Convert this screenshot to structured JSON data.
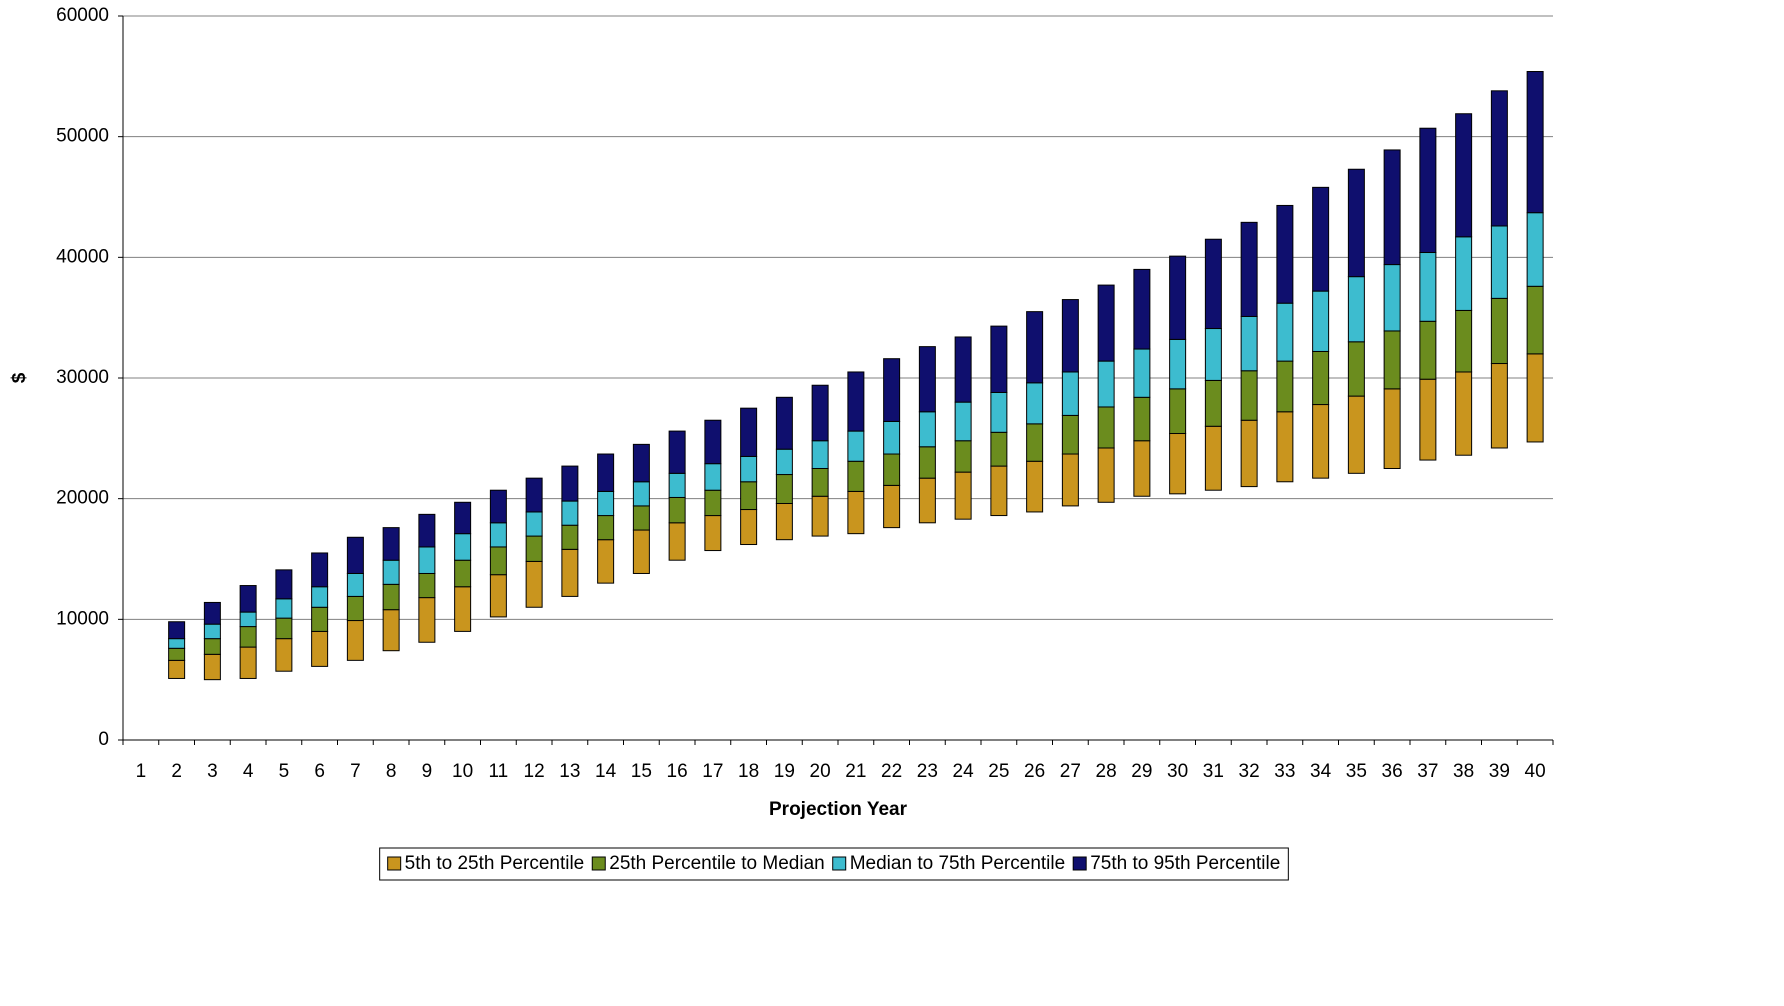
{
  "chart_data": {
    "type": "floating-stacked-bar",
    "y_label": "$",
    "x_label": "Projection Year",
    "categories": [
      "1",
      "2",
      "3",
      "4",
      "5",
      "6",
      "7",
      "8",
      "9",
      "10",
      "11",
      "12",
      "13",
      "14",
      "15",
      "16",
      "17",
      "18",
      "19",
      "20",
      "21",
      "22",
      "23",
      "24",
      "25",
      "26",
      "27",
      "28",
      "29",
      "30",
      "31",
      "32",
      "33",
      "34",
      "35",
      "36",
      "37",
      "38",
      "39",
      "40"
    ],
    "bases": [
      null,
      5100,
      5000,
      5100,
      5700,
      6100,
      6600,
      7400,
      8100,
      9000,
      10200,
      11000,
      11900,
      13000,
      13800,
      14900,
      15700,
      16200,
      16600,
      16900,
      17100,
      17600,
      18000,
      18300,
      18600,
      18900,
      19400,
      19700,
      20200,
      20400,
      20700,
      21000,
      21400,
      21700,
      22100,
      22500,
      23200,
      23600,
      24200,
      24700
    ],
    "series": [
      {
        "name": "5th to 25th Percentile",
        "color": "#c9951e",
        "values": [
          null,
          1500,
          2100,
          2600,
          2700,
          2900,
          3300,
          3400,
          3700,
          3700,
          3500,
          3800,
          3900,
          3600,
          3600,
          3100,
          2900,
          2900,
          3000,
          3300,
          3500,
          3500,
          3700,
          3900,
          4100,
          4200,
          4300,
          4500,
          4600,
          5000,
          5300,
          5500,
          5800,
          6100,
          6400,
          6600,
          6700,
          6900,
          7000,
          7300
        ]
      },
      {
        "name": "25th Percentile to Median",
        "color": "#6b8c1e",
        "values": [
          null,
          1000,
          1300,
          1700,
          1700,
          2000,
          2000,
          2100,
          2000,
          2200,
          2300,
          2100,
          2000,
          2000,
          2000,
          2100,
          2100,
          2300,
          2400,
          2300,
          2500,
          2600,
          2600,
          2600,
          2800,
          3100,
          3200,
          3400,
          3600,
          3700,
          3800,
          4100,
          4200,
          4400,
          4500,
          4800,
          4800,
          5100,
          5400,
          5600
        ]
      },
      {
        "name": "Median to 75th Percentile",
        "color": "#3dbccf",
        "values": [
          null,
          800,
          1200,
          1200,
          1600,
          1700,
          1900,
          2000,
          2200,
          2200,
          2000,
          2000,
          2000,
          2000,
          2000,
          2000,
          2200,
          2100,
          2100,
          2300,
          2500,
          2700,
          2900,
          3200,
          3300,
          3400,
          3600,
          3800,
          4000,
          4100,
          4300,
          4500,
          4800,
          5000,
          5400,
          5500,
          5700,
          6100,
          6000,
          6100
        ]
      },
      {
        "name": "75th to 95th Percentile",
        "color": "#0f0f6e",
        "values": [
          null,
          1400,
          1800,
          2200,
          2400,
          2800,
          3000,
          2700,
          2700,
          2600,
          2700,
          2800,
          2900,
          3100,
          3100,
          3500,
          3600,
          4000,
          4300,
          4600,
          4900,
          5200,
          5400,
          5400,
          5500,
          5900,
          6000,
          6300,
          6600,
          6900,
          7400,
          7800,
          8100,
          8600,
          8900,
          9500,
          10300,
          10200,
          11200,
          11700
        ]
      }
    ],
    "ylim": [
      0,
      60000
    ],
    "yticks": [
      0,
      10000,
      20000,
      30000,
      40000,
      50000,
      60000
    ],
    "grid": true,
    "legend": "bottom"
  }
}
